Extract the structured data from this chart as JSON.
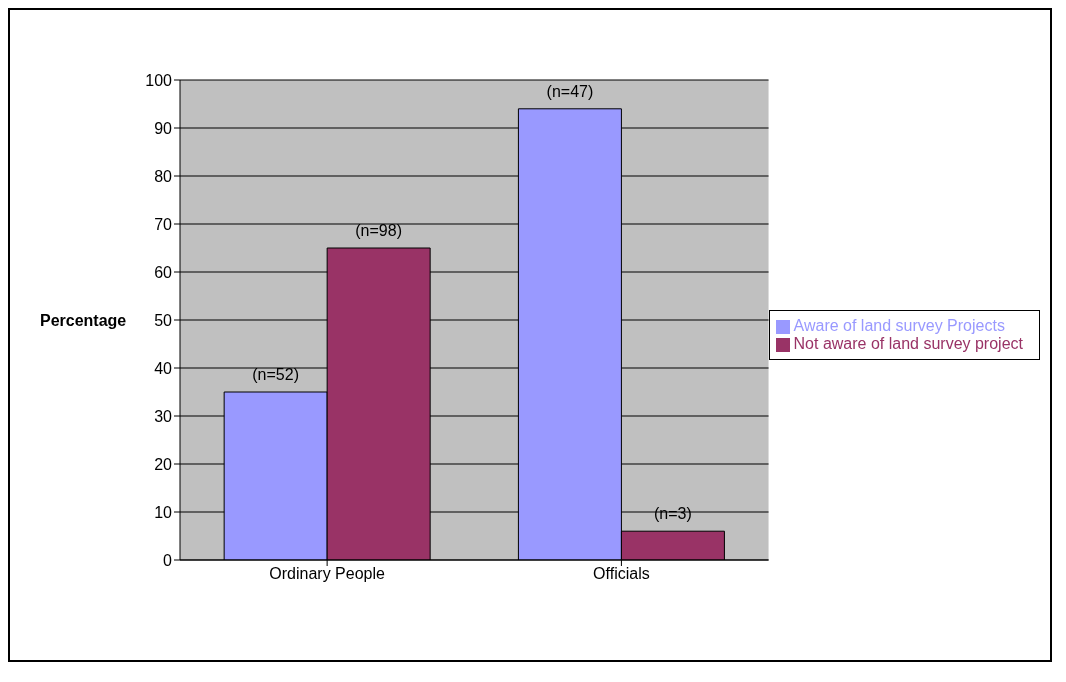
{
  "chart_data": {
    "type": "bar",
    "ylabel": "Percentage",
    "categories": [
      "Ordinary People",
      "Officials"
    ],
    "series": [
      {
        "name": "Aware of land survey Projects",
        "color": "#9999ff",
        "values": [
          35,
          94
        ]
      },
      {
        "name": "Not aware of land survey project",
        "color": "#993366",
        "values": [
          65,
          6
        ]
      }
    ],
    "ylim": [
      0,
      100
    ],
    "yticks": [
      0,
      10,
      20,
      30,
      40,
      50,
      60,
      70,
      80,
      90,
      100
    ],
    "grid": "y",
    "legend": "right",
    "annotations": [
      {
        "text": "(n=52)",
        "x": "Ordinary People",
        "y": 35
      },
      {
        "text": "(n=98)",
        "x": "Ordinary People",
        "y": 65
      },
      {
        "text": "(n=47)",
        "x": "Officials",
        "y": 94
      },
      {
        "text": "(n=3)",
        "x": "Officials",
        "y": 6
      }
    ]
  }
}
